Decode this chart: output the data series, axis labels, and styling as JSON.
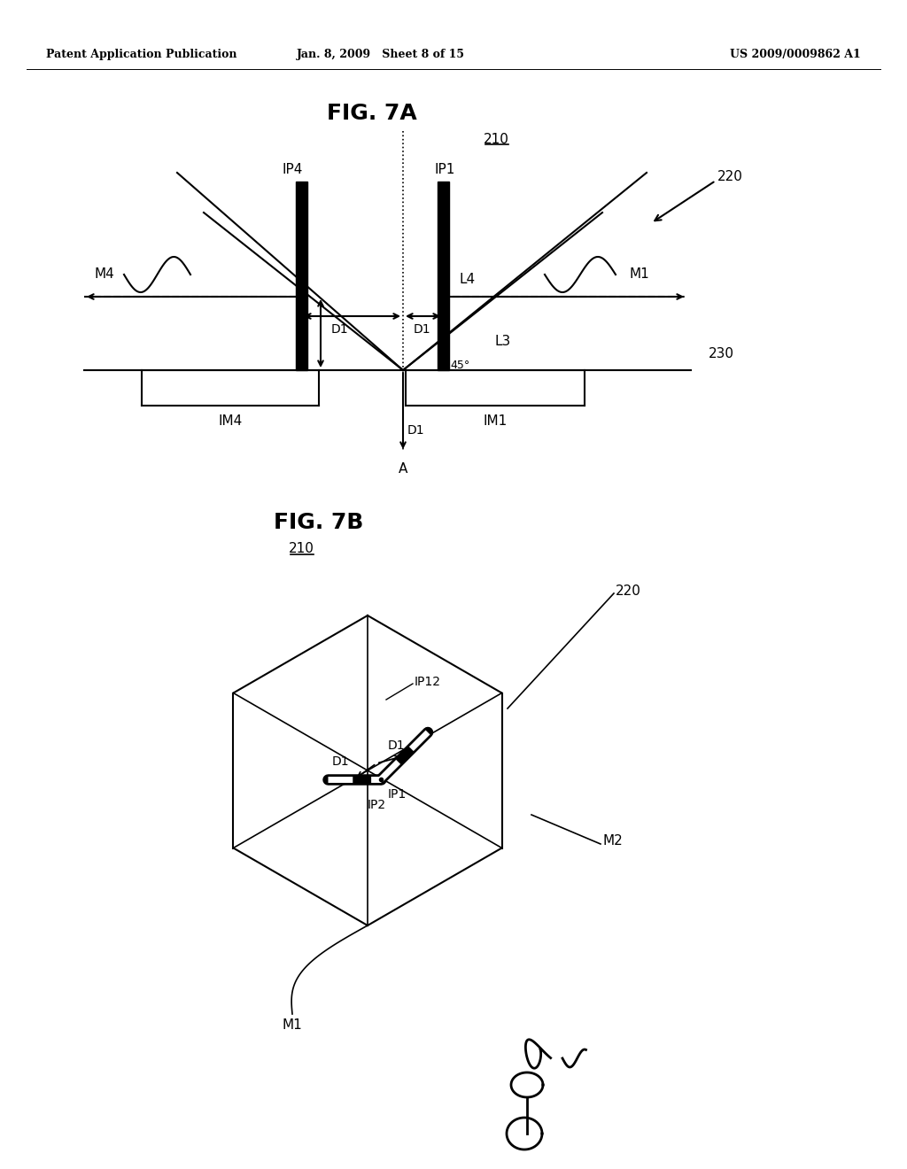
{
  "bg_color": "#ffffff",
  "header_left": "Patent Application Publication",
  "header_mid": "Jan. 8, 2009   Sheet 8 of 15",
  "header_right": "US 2009/0009862 A1",
  "fig7a_title": "FIG. 7A",
  "fig7b_title": "FIG. 7B",
  "lc": "#000000",
  "header_fontsize": 9,
  "title_fontsize": 18,
  "label_fontsize": 11,
  "small_fontsize": 10
}
